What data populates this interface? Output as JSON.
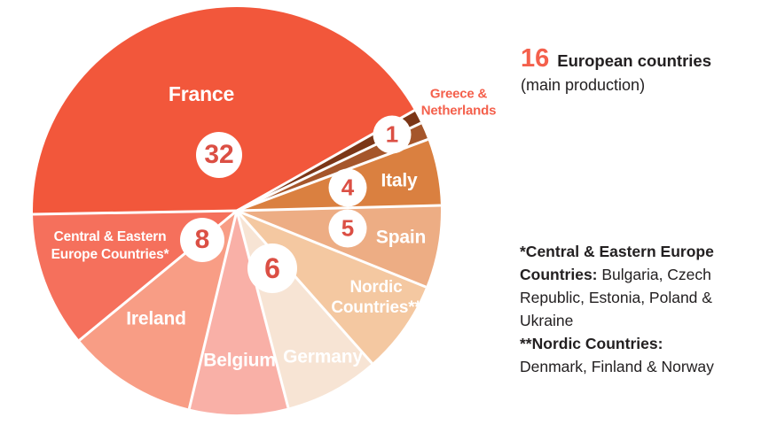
{
  "chart_data": {
    "type": "pie",
    "title": "16 European countries (main production)",
    "slices": [
      {
        "name": "france",
        "label": "France",
        "badge": "32",
        "start_deg": 269.0,
        "end_deg": 420.5,
        "color": "#F2573B"
      },
      {
        "name": "greece",
        "label": "Greece",
        "badge": "1",
        "start_deg": 60.5,
        "end_deg": 64.5,
        "color": "#7B3617",
        "note": "badge shared with Netherlands"
      },
      {
        "name": "netherlands",
        "label": "Netherlands",
        "badge": "1",
        "start_deg": 64.5,
        "end_deg": 69.5,
        "color": "#A5562B",
        "note": "badge shared with Greece"
      },
      {
        "name": "italy",
        "label": "Italy",
        "badge": "4",
        "start_deg": 69.5,
        "end_deg": 88.5,
        "color": "#DA8040"
      },
      {
        "name": "spain",
        "label": "Spain",
        "badge": "5",
        "start_deg": 88.5,
        "end_deg": 112.0,
        "color": "#EDAD84"
      },
      {
        "name": "nordic_countries",
        "label": "Nordic Countries**",
        "badge": null,
        "start_deg": 112.0,
        "end_deg": 138.5,
        "color": "#F4C8A1"
      },
      {
        "name": "germany",
        "label": "Germany",
        "badge": "6",
        "start_deg": 138.5,
        "end_deg": 165.4,
        "color": "#F7E4D4"
      },
      {
        "name": "belgium",
        "label": "Belgium",
        "badge": null,
        "start_deg": 165.4,
        "end_deg": 193.5,
        "color": "#F9B0A7"
      },
      {
        "name": "ireland",
        "label": "Ireland",
        "badge": null,
        "start_deg": 193.5,
        "end_deg": 230.5,
        "color": "#F89D85"
      },
      {
        "name": "cee",
        "label": "Central & Eastern Europe Countries*",
        "badge": "8",
        "start_deg": 230.5,
        "end_deg": 269.0,
        "color": "#F5705C"
      }
    ],
    "display_labels": {
      "france": "France",
      "greece_netherlands": "Greece &\nNetherlands",
      "italy": "Italy",
      "spain": "Spain",
      "nordic": "Nordic\nCountries**",
      "germany": "Germany",
      "belgium": "Belgium",
      "ireland": "Ireland",
      "cee": "Central & Eastern\nEurope Countries*"
    },
    "badges": {
      "france": "32",
      "greece_netherlands": "1",
      "italy": "4",
      "spain": "5",
      "germany": "6",
      "cee": "8"
    },
    "legend_position": "none",
    "grid": false
  },
  "sidebar": {
    "headline": {
      "number": "16",
      "title": "European countries",
      "subtitle": "(main production)"
    },
    "footnote_lines": [
      [
        {
          "bold": true,
          "text": "*Central & Eastern Europe"
        }
      ],
      [
        {
          "bold": true,
          "text": "Countries:"
        },
        {
          "bold": false,
          "text": " Bulgaria, Czech"
        }
      ],
      [
        {
          "bold": false,
          "text": "Republic, Estonia, Poland &"
        }
      ],
      [
        {
          "bold": false,
          "text": "Ukraine"
        }
      ],
      [
        {
          "bold": true,
          "text": "**Nordic Countries:"
        }
      ],
      [
        {
          "bold": false,
          "text": "Denmark, Finland & Norway"
        }
      ]
    ]
  },
  "colors": {
    "accent_red": "#F4604C",
    "badge_number_red": "#DB4F44",
    "text_black": "#232021",
    "slice_label_white": "#FFFFFF",
    "separator_white": "#FFFFFF"
  }
}
